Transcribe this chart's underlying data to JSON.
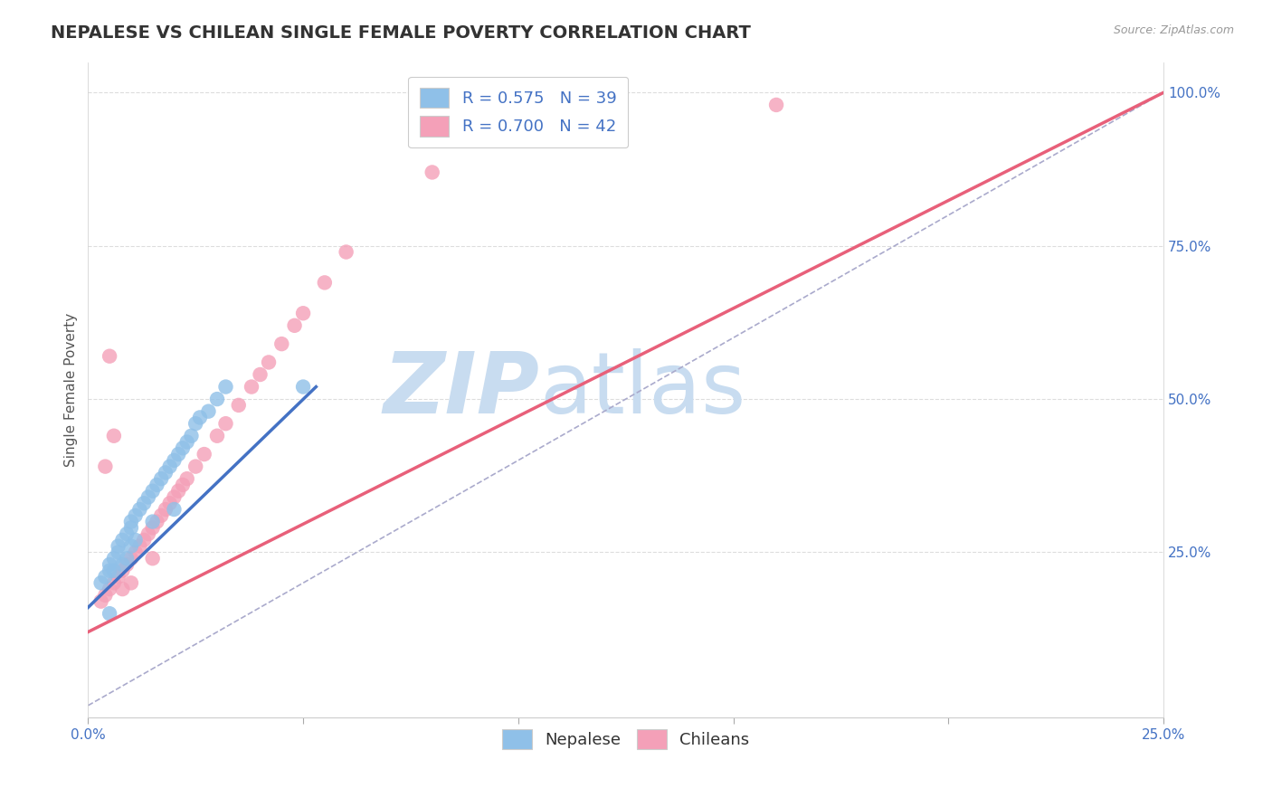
{
  "title": "NEPALESE VS CHILEAN SINGLE FEMALE POVERTY CORRELATION CHART",
  "source_text": "Source: ZipAtlas.com",
  "ylabel": "Single Female Poverty",
  "xlim": [
    0.0,
    0.25
  ],
  "ylim": [
    -0.02,
    1.05
  ],
  "x_ticks": [
    0.0,
    0.05,
    0.1,
    0.15,
    0.2,
    0.25
  ],
  "y_ticks": [
    0.25,
    0.5,
    0.75,
    1.0
  ],
  "nepalese_color": "#8FC0E8",
  "chilean_color": "#F4A0B8",
  "nepalese_line_color": "#4472C4",
  "chilean_line_color": "#E8607A",
  "reference_line_color": "#AAAACC",
  "R_nepalese": 0.575,
  "N_nepalese": 39,
  "R_chilean": 0.7,
  "N_chilean": 42,
  "nepalese_line_x0": 0.0,
  "nepalese_line_y0": 0.16,
  "nepalese_line_x1": 0.053,
  "nepalese_line_y1": 0.52,
  "chilean_line_x0": 0.0,
  "chilean_line_y0": 0.12,
  "chilean_line_x1": 0.25,
  "chilean_line_y1": 1.0,
  "nepalese_scatter_x": [
    0.003,
    0.004,
    0.005,
    0.005,
    0.006,
    0.006,
    0.007,
    0.007,
    0.008,
    0.008,
    0.009,
    0.009,
    0.01,
    0.01,
    0.01,
    0.011,
    0.011,
    0.012,
    0.013,
    0.014,
    0.015,
    0.015,
    0.016,
    0.017,
    0.018,
    0.019,
    0.02,
    0.02,
    0.021,
    0.022,
    0.023,
    0.024,
    0.025,
    0.026,
    0.028,
    0.03,
    0.032,
    0.05,
    0.005
  ],
  "nepalese_scatter_y": [
    0.2,
    0.21,
    0.22,
    0.23,
    0.24,
    0.22,
    0.25,
    0.26,
    0.27,
    0.23,
    0.28,
    0.24,
    0.29,
    0.3,
    0.26,
    0.31,
    0.27,
    0.32,
    0.33,
    0.34,
    0.35,
    0.3,
    0.36,
    0.37,
    0.38,
    0.39,
    0.4,
    0.32,
    0.41,
    0.42,
    0.43,
    0.44,
    0.46,
    0.47,
    0.48,
    0.5,
    0.52,
    0.52,
    0.15
  ],
  "chilean_scatter_x": [
    0.003,
    0.004,
    0.005,
    0.006,
    0.007,
    0.008,
    0.008,
    0.009,
    0.01,
    0.01,
    0.011,
    0.012,
    0.013,
    0.014,
    0.015,
    0.015,
    0.016,
    0.017,
    0.018,
    0.019,
    0.02,
    0.021,
    0.022,
    0.023,
    0.025,
    0.027,
    0.03,
    0.032,
    0.035,
    0.038,
    0.04,
    0.042,
    0.045,
    0.048,
    0.05,
    0.055,
    0.06,
    0.08,
    0.16,
    0.005,
    0.006,
    0.004
  ],
  "chilean_scatter_y": [
    0.17,
    0.18,
    0.19,
    0.2,
    0.21,
    0.22,
    0.19,
    0.23,
    0.24,
    0.2,
    0.25,
    0.26,
    0.27,
    0.28,
    0.29,
    0.24,
    0.3,
    0.31,
    0.32,
    0.33,
    0.34,
    0.35,
    0.36,
    0.37,
    0.39,
    0.41,
    0.44,
    0.46,
    0.49,
    0.52,
    0.54,
    0.56,
    0.59,
    0.62,
    0.64,
    0.69,
    0.74,
    0.87,
    0.98,
    0.57,
    0.44,
    0.39
  ],
  "watermark_zip": "ZIP",
  "watermark_atlas": "atlas",
  "watermark_color": "#C8DCF0",
  "background_color": "#FFFFFF",
  "grid_color": "#DDDDDD",
  "title_fontsize": 14,
  "axis_label_fontsize": 11,
  "tick_fontsize": 11,
  "legend_fontsize": 13,
  "tick_color": "#4472C4"
}
